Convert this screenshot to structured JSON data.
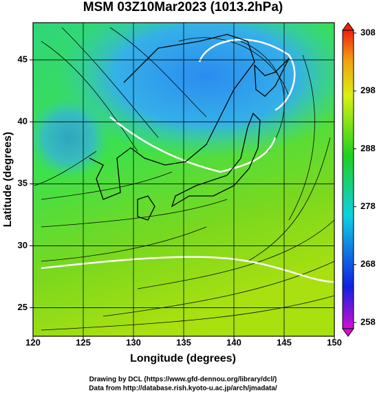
{
  "chart_data": {
    "type": "map",
    "title": "MSM 03Z10Mar2023 (1013.2hPa)",
    "x_label": "Longitude (degrees)",
    "y_label": "Latitude  (degrees)",
    "xlim": [
      120,
      150
    ],
    "ylim": [
      22.7,
      48
    ],
    "xticks": [
      120,
      125,
      130,
      135,
      140,
      145,
      150
    ],
    "yticks": [
      25,
      30,
      35,
      40,
      45
    ],
    "grid": true,
    "colorbar": {
      "lim": [
        258,
        308
      ],
      "ticks": [
        258,
        268,
        278,
        288,
        298,
        308
      ]
    },
    "annotations": [
      "Drawing by DCL (https://www.gfd-dennou.org/library/dcl/)",
      "Data from http://database.rish.kyoto-u.ac.jp/arch/jmadata/"
    ]
  }
}
